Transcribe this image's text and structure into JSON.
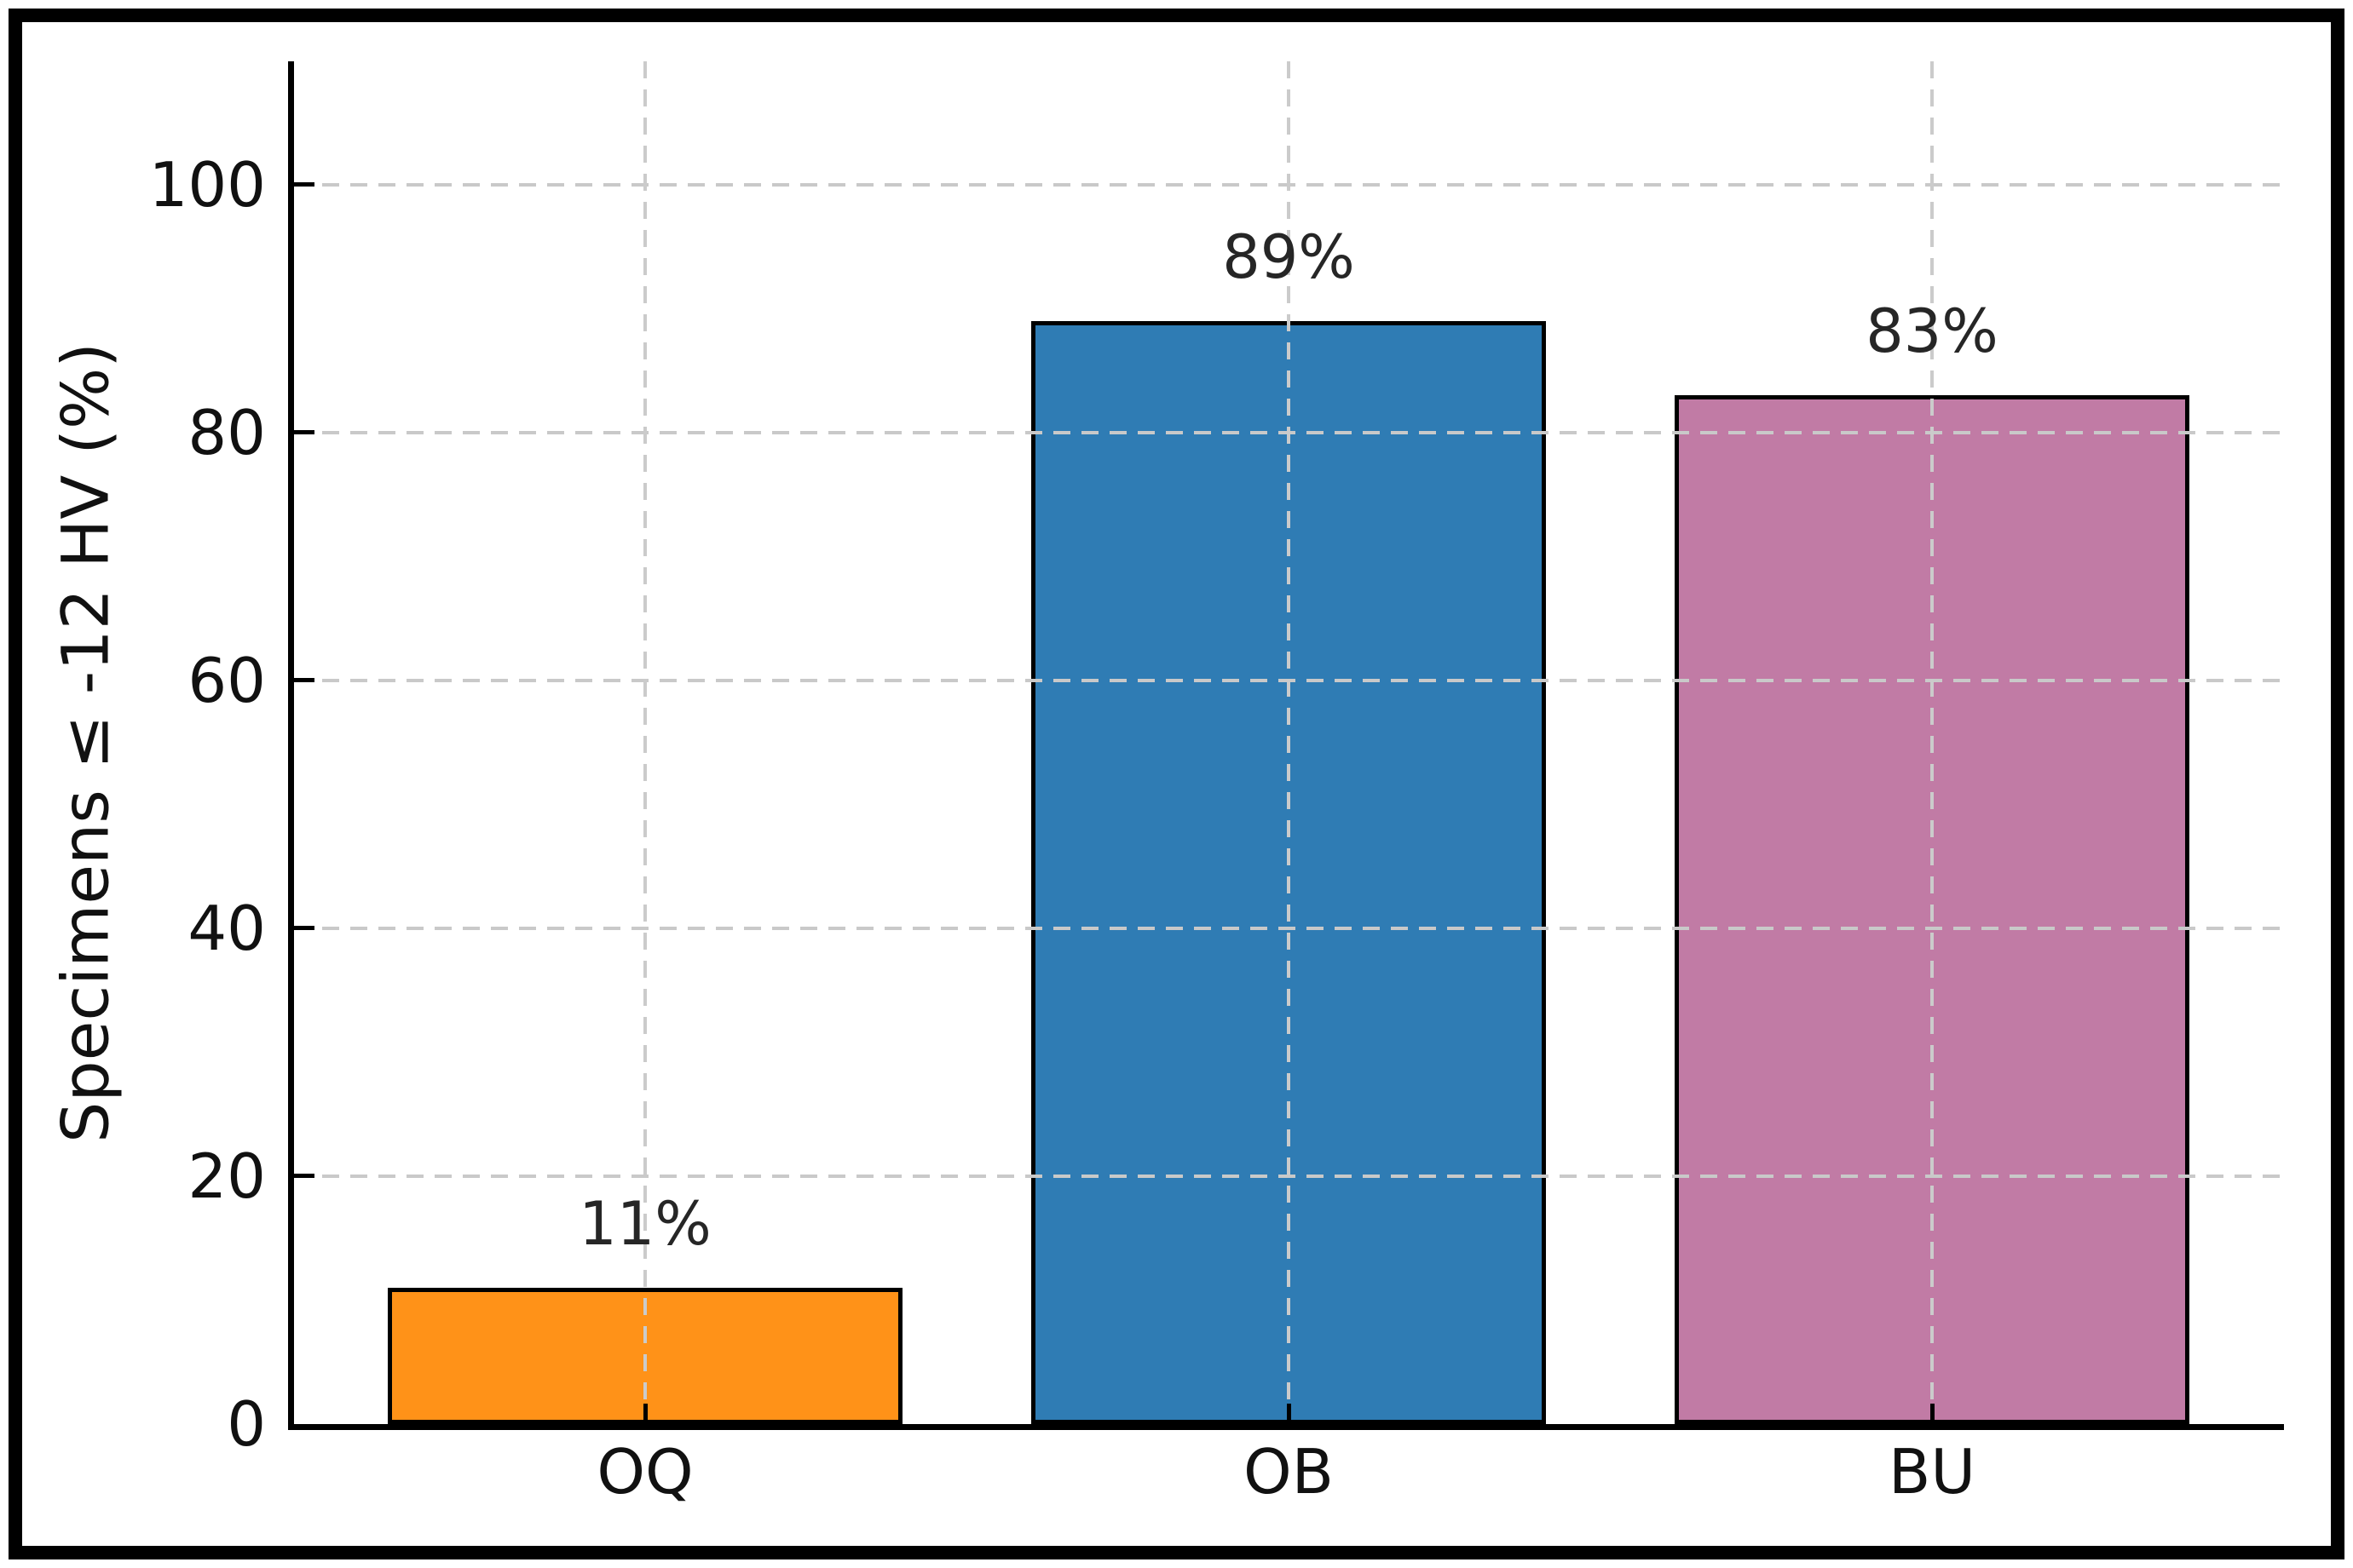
{
  "figure": {
    "kind": "bar-chart-figure"
  },
  "chart_data": {
    "type": "bar",
    "title": "",
    "xlabel": "",
    "ylabel": "Specimens ≤ -12 HV (%)",
    "categories": [
      "OQ",
      "OB",
      "BU"
    ],
    "values": [
      11,
      89,
      83
    ],
    "value_labels": [
      "11%",
      "89%",
      "83%"
    ],
    "bar_colors": [
      "#FF9218",
      "#2F7CB4",
      "#C17BA5"
    ],
    "bar_edge_color": "#000000",
    "ylim": [
      0,
      110
    ],
    "yticks": [
      0,
      20,
      40,
      60,
      80,
      100
    ],
    "ytick_labels": [
      "0",
      "20",
      "40",
      "60",
      "80",
      "100"
    ],
    "grid": true,
    "grid_style": "dashed",
    "grid_color": "#c9c9c9",
    "legend_position": "none"
  }
}
